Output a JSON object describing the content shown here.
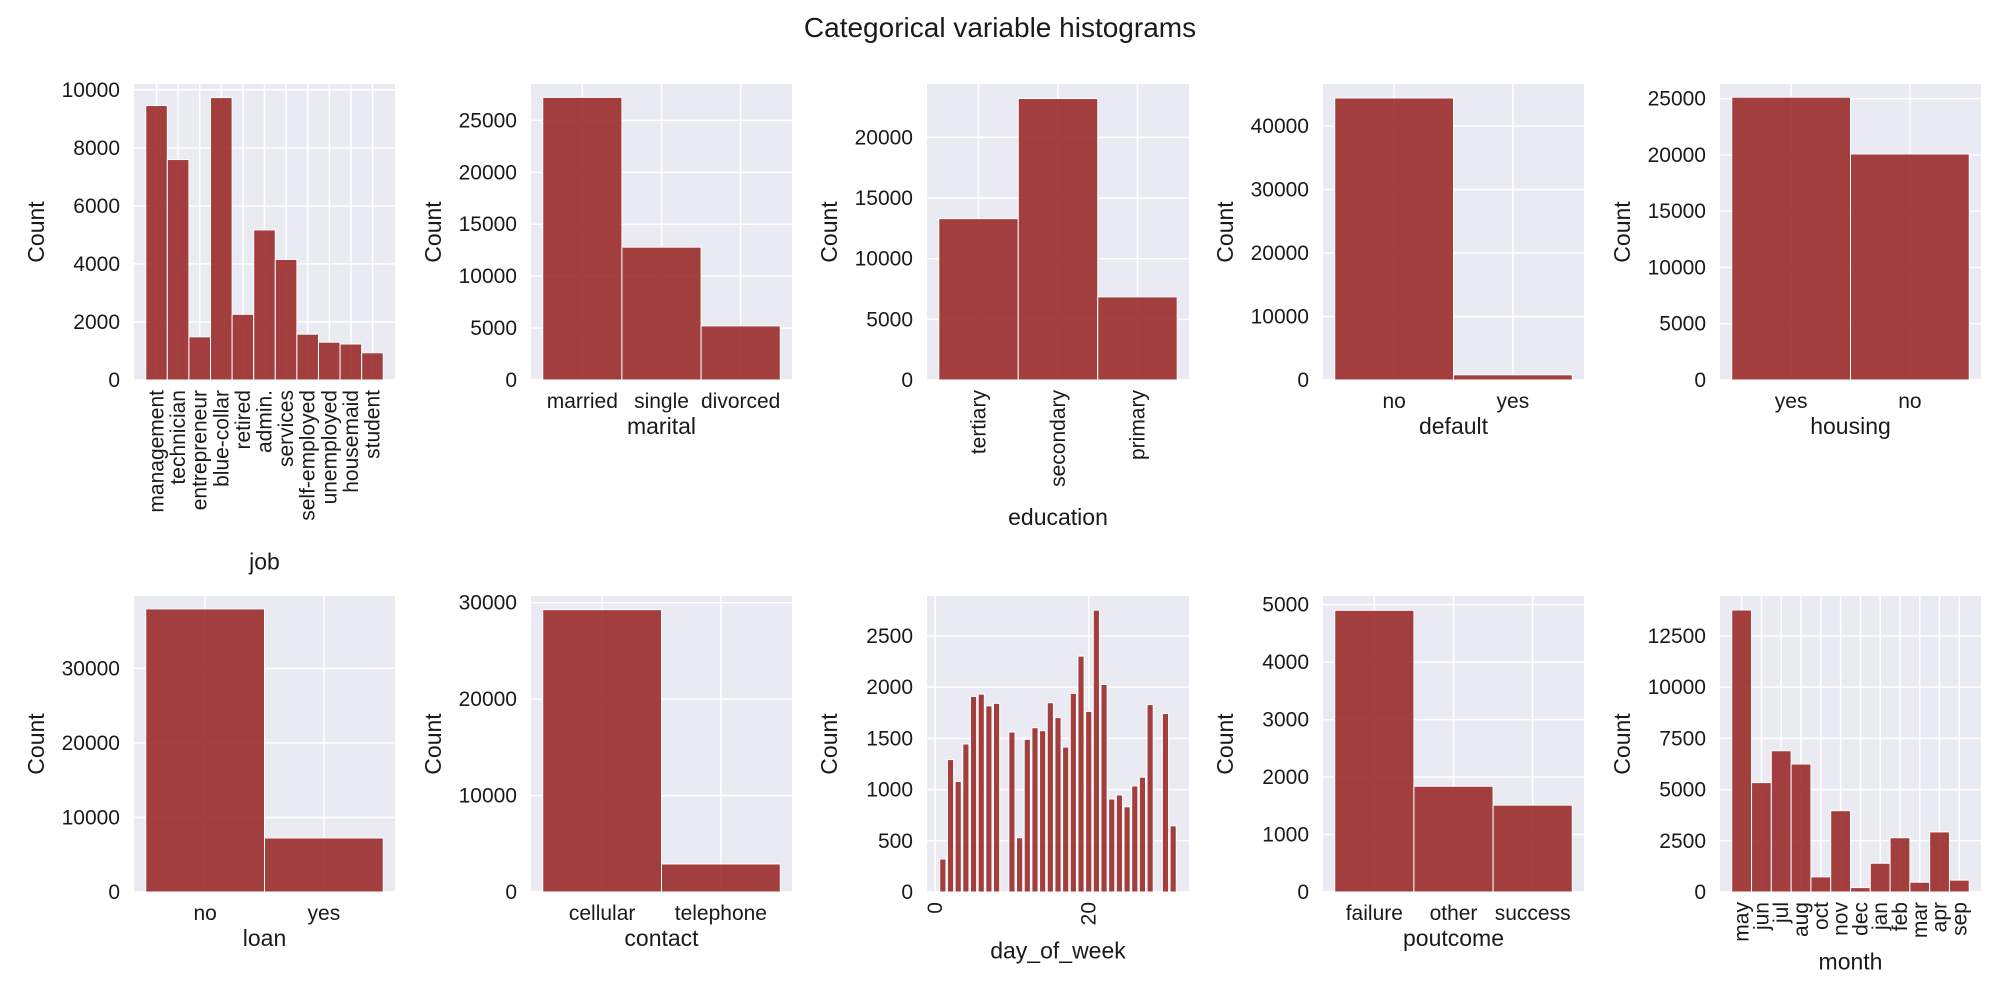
{
  "figure": {
    "title": "Categorical variable histograms"
  },
  "colors": {
    "bar": "#9b2b2b",
    "bar_edge": "#ffffff",
    "plot_bg": "#eaeaf2",
    "grid": "#ffffff"
  },
  "chart_data": [
    {
      "type": "bar",
      "xlabel": "job",
      "ylabel": "Count",
      "categories": [
        "management",
        "technician",
        "entrepreneur",
        "blue-collar",
        "retired",
        "admin.",
        "services",
        "self-employed",
        "unemployed",
        "housemaid",
        "student"
      ],
      "values": [
        9458,
        7597,
        1487,
        9732,
        2264,
        5171,
        4154,
        1579,
        1303,
        1240,
        938
      ],
      "ylim": [
        0,
        10200
      ],
      "yticks": [
        0,
        2000,
        4000,
        6000,
        8000,
        10000
      ],
      "rotate_xticks": true,
      "grid": true
    },
    {
      "type": "bar",
      "xlabel": "marital",
      "ylabel": "Count",
      "categories": [
        "married",
        "single",
        "divorced"
      ],
      "values": [
        27214,
        12790,
        5207
      ],
      "ylim": [
        0,
        28500
      ],
      "yticks": [
        0,
        5000,
        10000,
        15000,
        20000,
        25000
      ],
      "rotate_xticks": false,
      "grid": true
    },
    {
      "type": "bar",
      "xlabel": "education",
      "ylabel": "Count",
      "categories": [
        "tertiary",
        "secondary",
        "primary"
      ],
      "values": [
        13301,
        23202,
        6851
      ],
      "ylim": [
        0,
        24400
      ],
      "yticks": [
        0,
        5000,
        10000,
        15000,
        20000
      ],
      "rotate_xticks": true,
      "grid": true
    },
    {
      "type": "bar",
      "xlabel": "default",
      "ylabel": "Count",
      "categories": [
        "no",
        "yes"
      ],
      "values": [
        44396,
        815
      ],
      "ylim": [
        0,
        46600
      ],
      "yticks": [
        0,
        10000,
        20000,
        30000,
        40000
      ],
      "rotate_xticks": false,
      "grid": true
    },
    {
      "type": "bar",
      "xlabel": "housing",
      "ylabel": "Count",
      "categories": [
        "yes",
        "no"
      ],
      "values": [
        25130,
        20081
      ],
      "ylim": [
        0,
        26300
      ],
      "yticks": [
        0,
        5000,
        10000,
        15000,
        20000,
        25000
      ],
      "rotate_xticks": false,
      "grid": true
    },
    {
      "type": "bar",
      "xlabel": "loan",
      "ylabel": "Count",
      "categories": [
        "no",
        "yes"
      ],
      "values": [
        37967,
        7244
      ],
      "ylim": [
        0,
        39700
      ],
      "yticks": [
        0,
        10000,
        20000,
        30000
      ],
      "rotate_xticks": false,
      "grid": true
    },
    {
      "type": "bar",
      "xlabel": "contact",
      "ylabel": "Count",
      "categories": [
        "cellular",
        "telephone"
      ],
      "values": [
        29285,
        2906
      ],
      "ylim": [
        0,
        30700
      ],
      "yticks": [
        0,
        10000,
        20000,
        30000
      ],
      "rotate_xticks": false,
      "grid": true
    },
    {
      "type": "histogram",
      "xlabel": "day_of_week",
      "ylabel": "Count",
      "x": [
        1,
        2,
        3,
        4,
        5,
        6,
        7,
        8,
        9,
        10,
        11,
        12,
        13,
        14,
        15,
        16,
        17,
        18,
        19,
        20,
        21,
        22,
        23,
        24,
        25,
        26,
        27,
        28,
        29,
        30,
        31
      ],
      "values": [
        322,
        1293,
        1079,
        1445,
        1910,
        1932,
        1817,
        1842,
        0,
        1562,
        530,
        1491,
        1604,
        1575,
        1848,
        1703,
        1415,
        1939,
        2303,
        1763,
        2752,
        2026,
        908,
        947,
        832,
        1035,
        1121,
        1830,
        0,
        1743,
        646
      ],
      "xlim": [
        0.5,
        31.5
      ],
      "xticks": [
        0,
        20
      ],
      "ylim": [
        0,
        2890
      ],
      "yticks": [
        0,
        500,
        1000,
        1500,
        2000,
        2500
      ],
      "rotate_xticks": true,
      "grid": true
    },
    {
      "type": "bar",
      "xlabel": "poutcome",
      "ylabel": "Count",
      "categories": [
        "failure",
        "other",
        "success"
      ],
      "values": [
        4901,
        1840,
        1511
      ],
      "ylim": [
        0,
        5150
      ],
      "yticks": [
        0,
        1000,
        2000,
        3000,
        4000,
        5000
      ],
      "rotate_xticks": false,
      "grid": true
    },
    {
      "type": "bar",
      "xlabel": "month",
      "ylabel": "Count",
      "categories": [
        "may",
        "jun",
        "jul",
        "aug",
        "oct",
        "nov",
        "dec",
        "jan",
        "feb",
        "mar",
        "apr",
        "sep"
      ],
      "values": [
        13766,
        5341,
        6895,
        6247,
        738,
        3970,
        214,
        1403,
        2649,
        477,
        2932,
        579
      ],
      "ylim": [
        0,
        14450
      ],
      "yticks": [
        0,
        2500,
        5000,
        7500,
        10000,
        12500
      ],
      "rotate_xticks": true,
      "grid": true
    }
  ]
}
